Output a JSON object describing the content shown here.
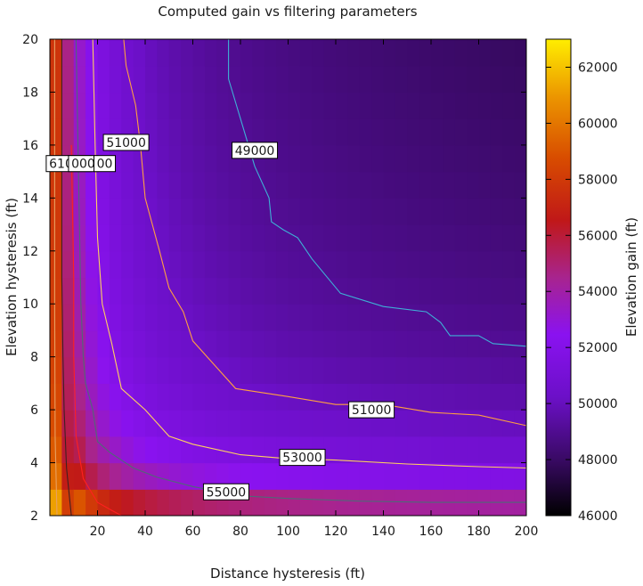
{
  "chart_data": {
    "type": "heatmap",
    "title": "Computed gain vs filtering parameters",
    "xlabel": "Distance hysteresis (ft)",
    "ylabel": "Elevation hysteresis (ft)",
    "colorbar_label": "Elevation gain (ft)",
    "xlim": [
      0,
      200
    ],
    "ylim": [
      2,
      20
    ],
    "x_ticks": [
      20,
      40,
      60,
      80,
      100,
      120,
      140,
      160,
      180,
      200
    ],
    "y_ticks": [
      2,
      4,
      6,
      8,
      10,
      12,
      14,
      16,
      18,
      20
    ],
    "color_range": [
      46000,
      63000
    ],
    "colorbar_ticks": [
      46000,
      48000,
      50000,
      52000,
      54000,
      56000,
      58000,
      60000,
      62000
    ],
    "colormap": "gnuplot-pm3d",
    "contour_labels": [
      {
        "text": "61000",
        "x": 8,
        "y": 15.3
      },
      {
        "text": "000",
        "x": 14,
        "y": 15.3
      },
      {
        "text": "00",
        "x": 23,
        "y": 15.3
      },
      {
        "text": "51000",
        "x": 32,
        "y": 16.1
      },
      {
        "text": "49000",
        "x": 86,
        "y": 15.8
      },
      {
        "text": "51000",
        "x": 135,
        "y": 6.0
      },
      {
        "text": "53000",
        "x": 106,
        "y": 4.2
      },
      {
        "text": "55000",
        "x": 74,
        "y": 2.9
      }
    ],
    "contours": [
      {
        "level": 49000,
        "color": "#3eb0d6",
        "points": [
          [
            75,
            20
          ],
          [
            75,
            18.5
          ],
          [
            80,
            17
          ],
          [
            86,
            15.2
          ],
          [
            92,
            14
          ],
          [
            93,
            13.1
          ],
          [
            98,
            12.8
          ],
          [
            104,
            12.5
          ],
          [
            110,
            11.7
          ],
          [
            122,
            10.4
          ],
          [
            140,
            9.9
          ],
          [
            158,
            9.7
          ],
          [
            164,
            9.3
          ],
          [
            168,
            8.8
          ],
          [
            180,
            8.8
          ],
          [
            186,
            8.5
          ],
          [
            200,
            8.4
          ]
        ]
      },
      {
        "level": 51000,
        "color": "#ffa040",
        "points": [
          [
            31,
            20
          ],
          [
            32,
            19
          ],
          [
            36,
            17.5
          ],
          [
            38,
            16
          ],
          [
            40,
            14
          ],
          [
            46,
            12
          ],
          [
            50,
            10.6
          ],
          [
            56,
            9.7
          ],
          [
            60,
            8.6
          ],
          [
            70,
            7.6
          ],
          [
            78,
            6.8
          ],
          [
            100,
            6.5
          ],
          [
            120,
            6.2
          ],
          [
            140,
            6.2
          ],
          [
            160,
            5.9
          ],
          [
            180,
            5.8
          ],
          [
            200,
            5.4
          ]
        ]
      },
      {
        "level": 53000,
        "color": "#ffd060",
        "points": [
          [
            18,
            20
          ],
          [
            19,
            16
          ],
          [
            20,
            12.5
          ],
          [
            22,
            10
          ],
          [
            26,
            8.5
          ],
          [
            30,
            6.8
          ],
          [
            40,
            6.0
          ],
          [
            50,
            5.0
          ],
          [
            60,
            4.7
          ],
          [
            80,
            4.3
          ],
          [
            100,
            4.15
          ],
          [
            120,
            4.1
          ],
          [
            150,
            3.95
          ],
          [
            180,
            3.85
          ],
          [
            200,
            3.8
          ]
        ]
      },
      {
        "level": 55000,
        "color": "#506878",
        "points": [
          [
            11,
            20
          ],
          [
            12,
            15
          ],
          [
            13,
            10
          ],
          [
            14,
            8
          ],
          [
            15,
            7
          ],
          [
            18,
            6
          ],
          [
            20,
            4.8
          ],
          [
            25,
            4.4
          ],
          [
            35,
            3.8
          ],
          [
            45,
            3.45
          ],
          [
            60,
            3.1
          ],
          [
            80,
            2.75
          ],
          [
            100,
            2.65
          ],
          [
            130,
            2.55
          ],
          [
            160,
            2.5
          ],
          [
            200,
            2.5
          ]
        ]
      },
      {
        "level": 57000,
        "color": "#ff2020",
        "points": [
          [
            9,
            16
          ],
          [
            10,
            11
          ],
          [
            10,
            8
          ],
          [
            11,
            5
          ],
          [
            14,
            3.4
          ],
          [
            20,
            2.5
          ],
          [
            26,
            2.2
          ],
          [
            30,
            2
          ]
        ]
      },
      {
        "level": 59000,
        "color": "#402020",
        "points": [
          [
            5,
            20
          ],
          [
            5,
            11
          ],
          [
            5.5,
            8
          ],
          [
            6,
            6
          ],
          [
            7,
            3.8
          ],
          [
            9,
            2
          ]
        ]
      },
      {
        "level": 61000,
        "color": "#e8a060",
        "points": [
          [
            2,
            20
          ],
          [
            2,
            10
          ],
          [
            2.2,
            5
          ],
          [
            3,
            2
          ]
        ]
      }
    ]
  }
}
